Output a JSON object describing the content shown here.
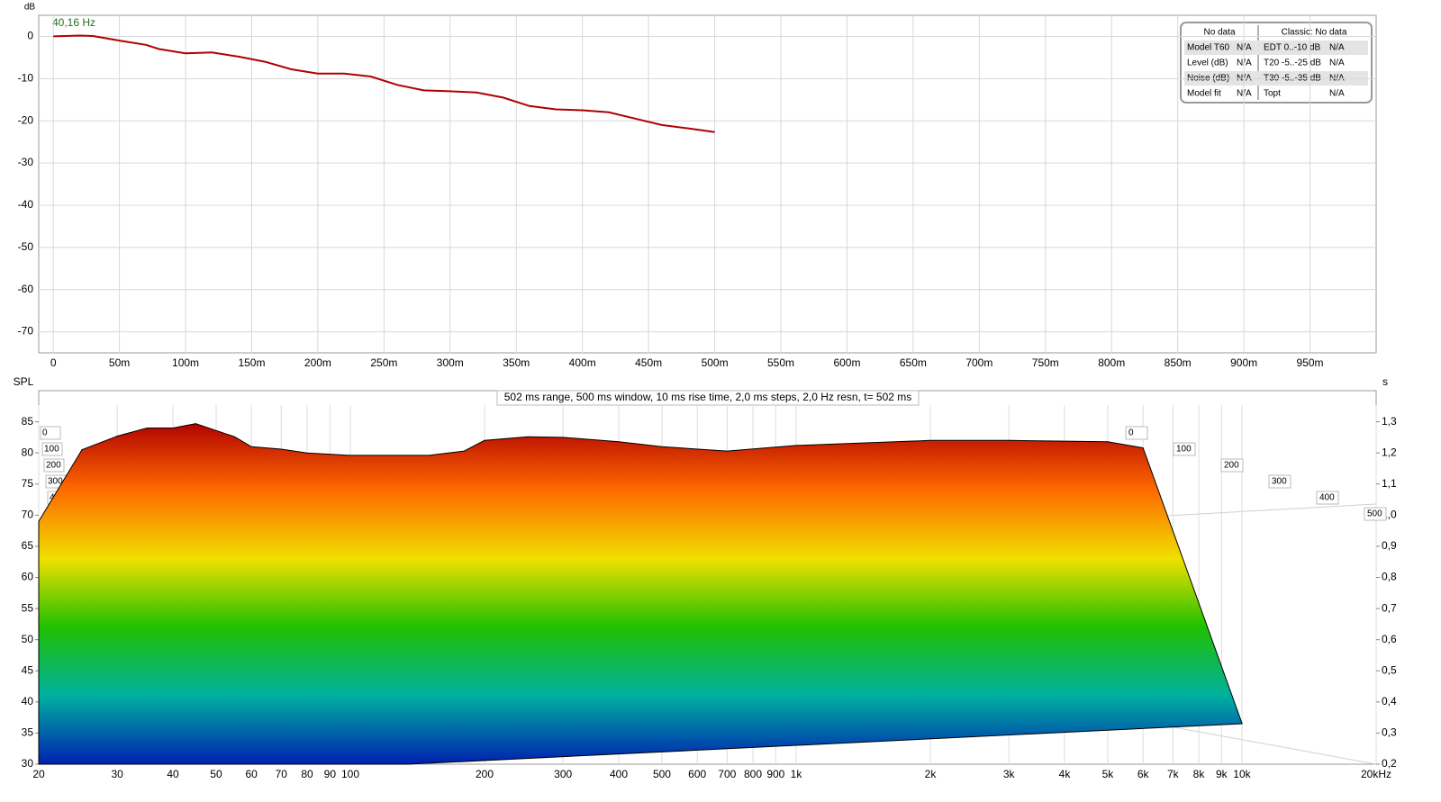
{
  "chart_data": [
    {
      "type": "line",
      "annotation": "40,16 Hz",
      "y_label": "dB",
      "x": [
        0,
        20,
        30,
        50,
        70,
        80,
        100,
        120,
        140,
        160,
        180,
        200,
        220,
        240,
        260,
        280,
        300,
        320,
        340,
        360,
        380,
        400,
        420,
        440,
        460,
        480,
        500
      ],
      "series": [
        {
          "color": "#b00000",
          "values": [
            0,
            0.2,
            0.1,
            -1,
            -2,
            -3,
            -4,
            -3.8,
            -4.8,
            -6,
            -7.8,
            -8.8,
            -8.8,
            -9.5,
            -11.5,
            -12.8,
            -13,
            -13.3,
            -14.5,
            -16.5,
            -17.3,
            -17.5,
            -18,
            -19.5,
            -21,
            -21.8,
            -22.7
          ]
        }
      ],
      "xlim": [
        -11,
        1000
      ],
      "ylim": [
        -75,
        5
      ],
      "xticks": [
        0,
        {
          "value": 50,
          "label": "50m"
        },
        {
          "value": 100,
          "label": "100m"
        },
        {
          "value": 150,
          "label": "150m"
        },
        {
          "value": 200,
          "label": "200m"
        },
        {
          "value": 250,
          "label": "250m"
        },
        {
          "value": 300,
          "label": "300m"
        },
        {
          "value": 350,
          "label": "350m"
        },
        {
          "value": 400,
          "label": "400m"
        },
        {
          "value": 450,
          "label": "450m"
        },
        {
          "value": 500,
          "label": "500m"
        },
        {
          "value": 550,
          "label": "550m"
        },
        {
          "value": 600,
          "label": "600m"
        },
        {
          "value": 650,
          "label": "650m"
        },
        {
          "value": 700,
          "label": "700m"
        },
        {
          "value": 750,
          "label": "750m"
        },
        {
          "value": 800,
          "label": "800m"
        },
        {
          "value": 850,
          "label": "850m"
        },
        {
          "value": 900,
          "label": "900m"
        },
        {
          "value": 950,
          "label": "950m"
        }
      ],
      "yticks": [
        0,
        -10,
        -20,
        -30,
        -40,
        -50,
        -60,
        -70
      ],
      "grid": true,
      "info_table": {
        "header": [
          "No data",
          "Classic: No data"
        ],
        "rows": [
          [
            "Model T60",
            "N/A",
            "EDT  0..-10 dB",
            "N/A"
          ],
          [
            "Level (dB)",
            "N/A",
            "T20 -5..-25 dB",
            "N/A"
          ],
          [
            "Noise (dB)",
            "N/A",
            "T30 -5..-35 dB",
            "N/A"
          ],
          [
            "Model fit",
            "N/A",
            "Topt",
            "N/A"
          ]
        ]
      }
    },
    {
      "type": "waterfall",
      "title": "502 ms range, 500 ms window, 10 ms rise time, 2,0 ms steps,  2,0 Hz resn, t= 502 ms",
      "y_label": "SPL",
      "y2_label": "s",
      "log_x": true,
      "x": [
        20,
        25,
        30,
        35,
        40,
        45,
        50,
        55,
        60,
        70,
        80,
        100,
        150,
        180,
        200,
        250,
        300,
        400,
        500,
        700,
        1000,
        2000,
        3000,
        5000,
        6000
      ],
      "series": [
        {
          "values": [
            69,
            80.5,
            82.7,
            84,
            84,
            84.7,
            83.6,
            82.6,
            81,
            80.6,
            80,
            79.6,
            79.6,
            80.3,
            82,
            82.6,
            82.5,
            81.8,
            81,
            80.3,
            81.2,
            82,
            82,
            81.8,
            80.8
          ]
        }
      ],
      "colormap": [
        "#b00000",
        "#ff6a00",
        "#f0e000",
        "#20c000",
        "#00b0a0",
        "#0020b0"
      ],
      "xlim": [
        20,
        20000
      ],
      "ylim": [
        30,
        90
      ],
      "y2lim": [
        0.2,
        1.4
      ],
      "xticks": [
        20,
        30,
        40,
        50,
        60,
        70,
        80,
        90,
        100,
        200,
        300,
        400,
        500,
        600,
        700,
        800,
        900,
        {
          "value": 1000,
          "label": "1k"
        },
        {
          "value": 2000,
          "label": "2k"
        },
        {
          "value": 3000,
          "label": "3k"
        },
        {
          "value": 4000,
          "label": "4k"
        },
        {
          "value": 5000,
          "label": "5k"
        },
        {
          "value": 6000,
          "label": "6k"
        },
        {
          "value": 7000,
          "label": "7k"
        },
        {
          "value": 8000,
          "label": "8k"
        },
        {
          "value": 9000,
          "label": "9k"
        },
        {
          "value": 10000,
          "label": "10k"
        },
        {
          "value": 20000,
          "label": "20kHz"
        }
      ],
      "yticks": [
        30,
        35,
        40,
        45,
        50,
        55,
        60,
        65,
        70,
        75,
        80,
        85
      ],
      "y2ticks": [
        {
          "value": 0.2,
          "label": "0,2"
        },
        {
          "value": 0.3,
          "label": "0,3"
        },
        {
          "value": 0.4,
          "label": "0,4"
        },
        {
          "value": 0.5,
          "label": "0,5"
        },
        {
          "value": 0.6,
          "label": "0,6"
        },
        {
          "value": 0.7,
          "label": "0,7"
        },
        {
          "value": 0.8,
          "label": "0,8"
        },
        {
          "value": 0.9,
          "label": "0,9"
        },
        {
          "value": 1.0,
          "label": "1,0"
        },
        {
          "value": 1.1,
          "label": "1,1"
        },
        {
          "value": 1.2,
          "label": "1,2"
        },
        {
          "value": 1.3,
          "label": "1,3"
        }
      ],
      "zticks": [
        0,
        100,
        200,
        300,
        400,
        500
      ]
    }
  ]
}
